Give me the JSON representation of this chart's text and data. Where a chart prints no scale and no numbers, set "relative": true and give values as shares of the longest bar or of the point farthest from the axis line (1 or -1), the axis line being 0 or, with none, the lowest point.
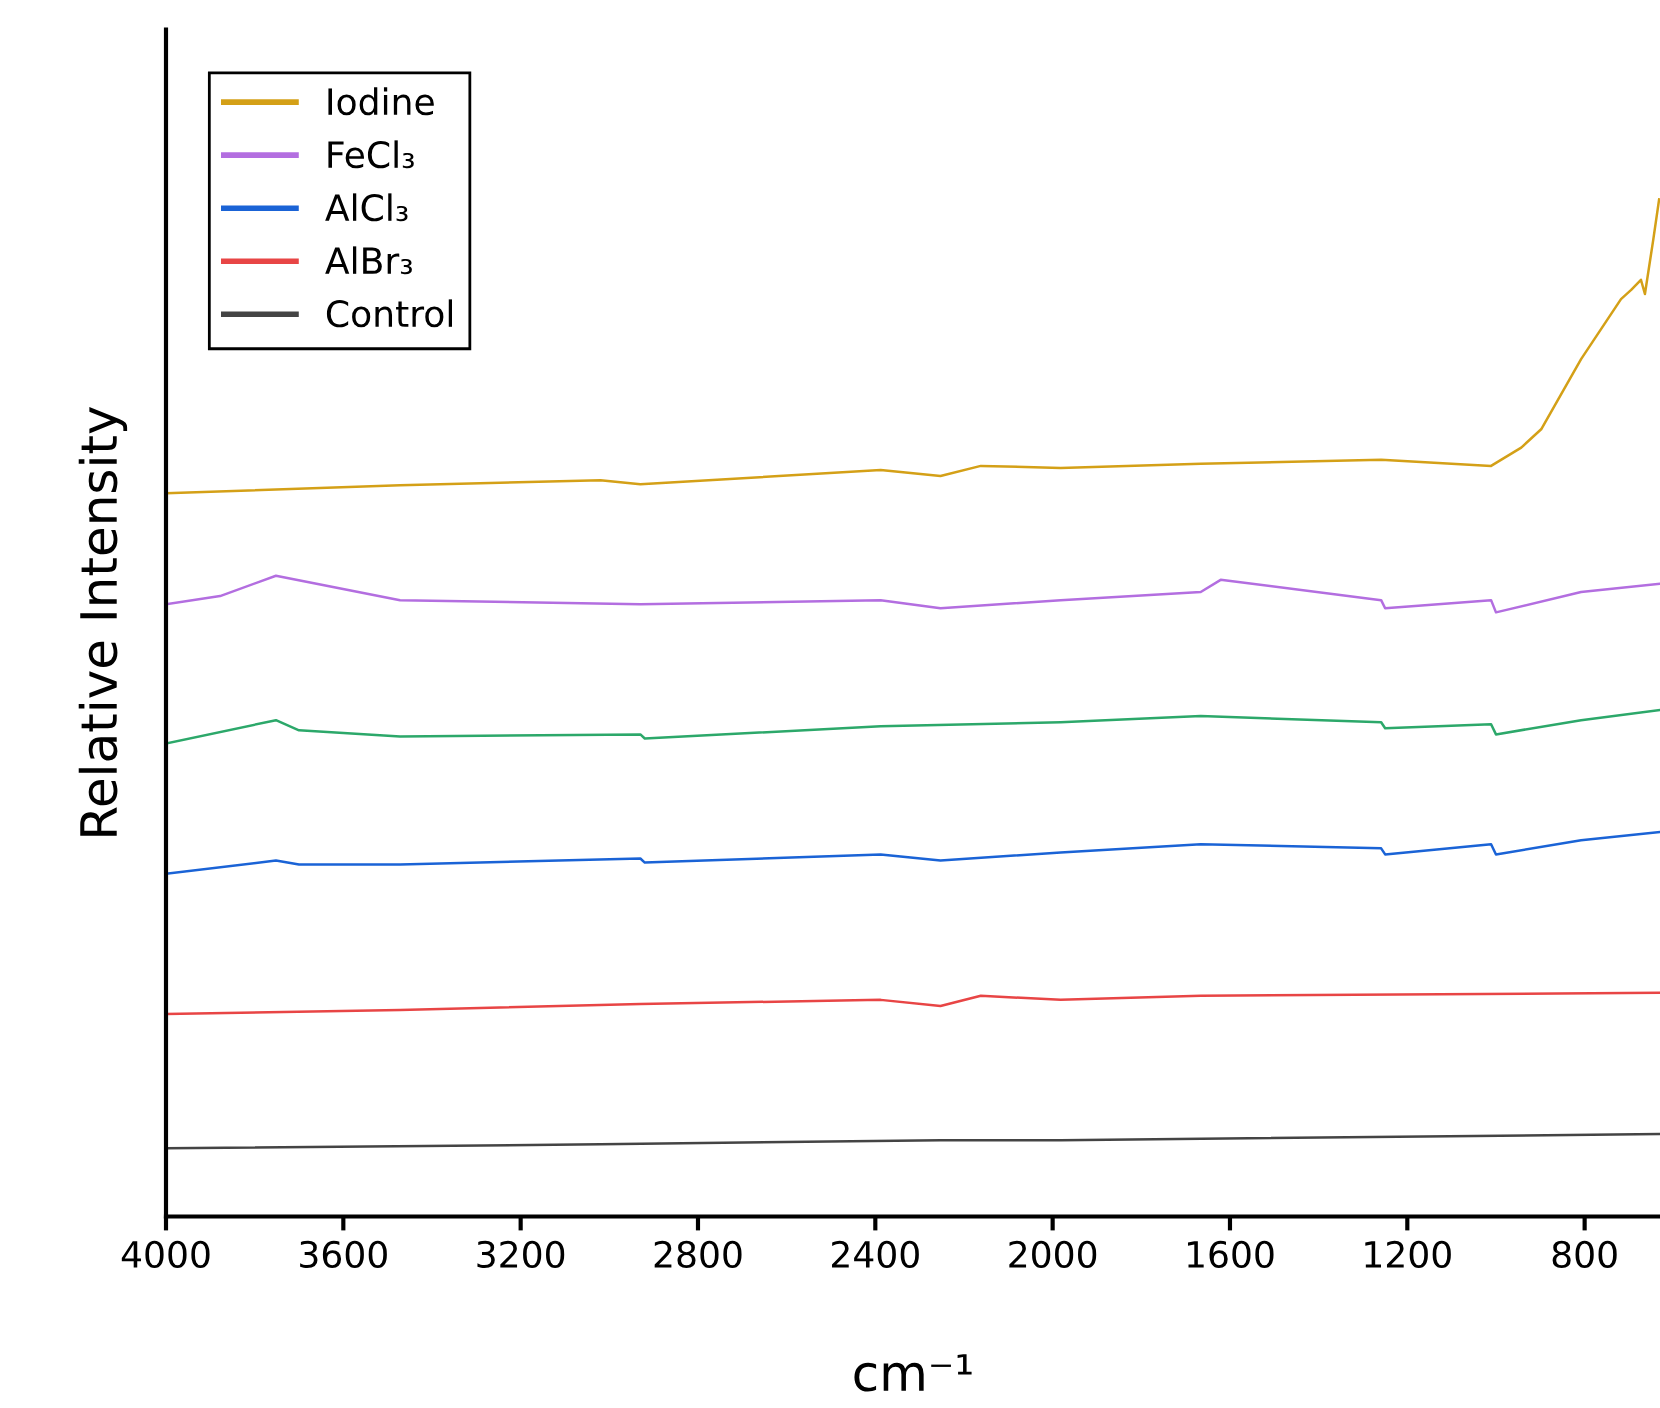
{
  "chart_data": {
    "type": "line",
    "relative": true,
    "xlabel": "cm⁻¹",
    "ylabel": "Relative Intensity",
    "xlim": [
      4000,
      630
    ],
    "xticks": [
      4000,
      3600,
      3200,
      2800,
      2400,
      2000,
      1600,
      1200,
      800
    ],
    "grid": false,
    "legend": "top left",
    "marker": "none",
    "line_style": "solid",
    "series": [
      {
        "name": "Iodine",
        "color": "#d4a017",
        "x": [
          4000,
          3472,
          3020,
          2930,
          2388,
          2253,
          2162,
          1982,
          1666,
          1259,
          1011,
          943,
          898,
          808,
          718,
          695,
          673,
          664,
          645,
          632
        ],
        "values": [
          0.711,
          0.719,
          0.724,
          0.72,
          0.734,
          0.728,
          0.738,
          0.736,
          0.74,
          0.744,
          0.738,
          0.756,
          0.774,
          0.843,
          0.902,
          0.911,
          0.921,
          0.907,
          0.961,
          1.0
        ]
      },
      {
        "name": "FeCl₃",
        "color": "#b36ee0",
        "x": [
          4000,
          3878,
          3752,
          3472,
          2930,
          2388,
          2253,
          1982,
          1666,
          1621,
          1259,
          1250,
          1011,
          1000,
          808,
          632
        ],
        "values": [
          0.602,
          0.61,
          0.63,
          0.606,
          0.602,
          0.606,
          0.598,
          0.606,
          0.614,
          0.626,
          0.606,
          0.598,
          0.606,
          0.594,
          0.614,
          0.622
        ]
      },
      {
        "name": null,
        "color": "#2ca86a",
        "x": [
          4000,
          3752,
          3700,
          3472,
          2930,
          2920,
          2388,
          1982,
          1666,
          1259,
          1250,
          1011,
          1000,
          808,
          632
        ],
        "values": [
          0.465,
          0.488,
          0.478,
          0.472,
          0.474,
          0.47,
          0.482,
          0.486,
          0.492,
          0.486,
          0.48,
          0.484,
          0.474,
          0.488,
          0.498
        ]
      },
      {
        "name": "AlCl₃",
        "color": "#1a63d6",
        "x": [
          4000,
          3752,
          3700,
          3472,
          2930,
          2920,
          2388,
          2253,
          1982,
          1666,
          1259,
          1250,
          1011,
          1000,
          808,
          632
        ],
        "values": [
          0.337,
          0.35,
          0.346,
          0.346,
          0.352,
          0.348,
          0.356,
          0.35,
          0.358,
          0.366,
          0.362,
          0.356,
          0.366,
          0.356,
          0.37,
          0.378
        ]
      },
      {
        "name": "AlBr₃",
        "color": "#e84545",
        "x": [
          4000,
          3472,
          2930,
          2388,
          2253,
          2162,
          1982,
          1666,
          632
        ],
        "values": [
          0.199,
          0.203,
          0.209,
          0.213,
          0.207,
          0.217,
          0.213,
          0.217,
          0.22
        ]
      },
      {
        "name": "Control",
        "color": "#444444",
        "x": [
          4000,
          3020,
          2253,
          1982,
          632
        ],
        "values": [
          0.067,
          0.071,
          0.075,
          0.075,
          0.081
        ]
      }
    ]
  }
}
